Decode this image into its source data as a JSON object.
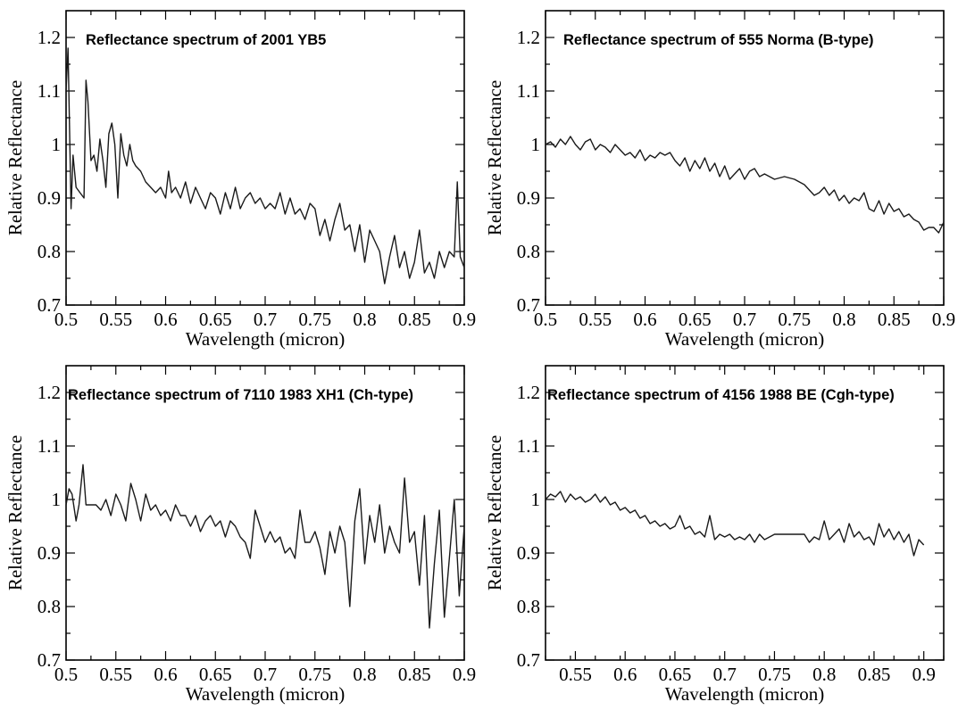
{
  "chart_data": [
    {
      "type": "line",
      "title": "Reflectance spectrum of 2001 YB5",
      "xlabel": "Wavelength (micron)",
      "ylabel": "Relative Reflectance",
      "xlim": [
        0.5,
        0.9
      ],
      "ylim": [
        0.7,
        1.25
      ],
      "xticks": [
        0.5,
        0.55,
        0.6,
        0.65,
        0.7,
        0.75,
        0.8,
        0.85,
        0.9
      ],
      "xtick_labels": [
        "0.5",
        "0.55",
        "0.6",
        "0.65",
        "0.7",
        "0.75",
        "0.8",
        "0.85",
        "0.9"
      ],
      "yticks": [
        0.7,
        0.8,
        0.9,
        1.0,
        1.1,
        1.2
      ],
      "ytick_labels": [
        "0.7",
        "0.8",
        "0.9",
        "1",
        "1.1",
        "1.2"
      ],
      "x": [
        0.5,
        0.502,
        0.505,
        0.507,
        0.51,
        0.514,
        0.518,
        0.52,
        0.522,
        0.525,
        0.528,
        0.531,
        0.534,
        0.537,
        0.54,
        0.543,
        0.546,
        0.549,
        0.552,
        0.555,
        0.558,
        0.561,
        0.564,
        0.567,
        0.57,
        0.575,
        0.58,
        0.585,
        0.59,
        0.595,
        0.6,
        0.603,
        0.606,
        0.61,
        0.615,
        0.62,
        0.625,
        0.63,
        0.635,
        0.64,
        0.645,
        0.65,
        0.655,
        0.66,
        0.665,
        0.67,
        0.675,
        0.68,
        0.685,
        0.69,
        0.695,
        0.7,
        0.705,
        0.71,
        0.715,
        0.72,
        0.725,
        0.73,
        0.735,
        0.74,
        0.745,
        0.75,
        0.755,
        0.76,
        0.765,
        0.77,
        0.775,
        0.78,
        0.785,
        0.79,
        0.795,
        0.8,
        0.805,
        0.81,
        0.815,
        0.82,
        0.825,
        0.83,
        0.835,
        0.84,
        0.845,
        0.85,
        0.855,
        0.86,
        0.865,
        0.87,
        0.875,
        0.88,
        0.885,
        0.89,
        0.893,
        0.896,
        0.9
      ],
      "y": [
        1.1,
        1.18,
        0.88,
        0.98,
        0.92,
        0.91,
        0.9,
        1.12,
        1.08,
        0.97,
        0.98,
        0.95,
        1.01,
        0.97,
        0.92,
        1.02,
        1.04,
        1.0,
        0.9,
        1.02,
        0.98,
        0.96,
        1.0,
        0.97,
        0.96,
        0.95,
        0.93,
        0.92,
        0.91,
        0.92,
        0.9,
        0.95,
        0.91,
        0.92,
        0.9,
        0.93,
        0.89,
        0.92,
        0.9,
        0.88,
        0.91,
        0.9,
        0.87,
        0.91,
        0.88,
        0.92,
        0.88,
        0.9,
        0.91,
        0.89,
        0.9,
        0.88,
        0.89,
        0.88,
        0.91,
        0.87,
        0.9,
        0.87,
        0.88,
        0.86,
        0.89,
        0.88,
        0.83,
        0.86,
        0.82,
        0.86,
        0.89,
        0.84,
        0.85,
        0.8,
        0.85,
        0.78,
        0.84,
        0.82,
        0.8,
        0.74,
        0.79,
        0.83,
        0.77,
        0.8,
        0.75,
        0.78,
        0.84,
        0.76,
        0.78,
        0.75,
        0.8,
        0.77,
        0.8,
        0.79,
        0.93,
        0.79,
        0.77
      ],
      "grid": false
    },
    {
      "type": "line",
      "title": "Reflectance spectrum of 555 Norma (B-type)",
      "xlabel": "Wavelength (micron)",
      "ylabel": "Relative Reflectance",
      "xlim": [
        0.5,
        0.9
      ],
      "ylim": [
        0.7,
        1.25
      ],
      "xticks": [
        0.5,
        0.55,
        0.6,
        0.65,
        0.7,
        0.75,
        0.8,
        0.85,
        0.9
      ],
      "xtick_labels": [
        "0.5",
        "0.55",
        "0.6",
        "0.65",
        "0.7",
        "0.75",
        "0.8",
        "0.85",
        "0.9"
      ],
      "yticks": [
        0.7,
        0.8,
        0.9,
        1.0,
        1.1,
        1.2
      ],
      "ytick_labels": [
        "0.7",
        "0.8",
        "0.9",
        "1",
        "1.1",
        "1.2"
      ],
      "x": [
        0.5,
        0.505,
        0.51,
        0.515,
        0.52,
        0.525,
        0.53,
        0.535,
        0.54,
        0.545,
        0.55,
        0.555,
        0.56,
        0.565,
        0.57,
        0.575,
        0.58,
        0.585,
        0.59,
        0.595,
        0.6,
        0.605,
        0.61,
        0.615,
        0.62,
        0.625,
        0.63,
        0.635,
        0.64,
        0.645,
        0.65,
        0.655,
        0.66,
        0.665,
        0.67,
        0.675,
        0.68,
        0.685,
        0.69,
        0.695,
        0.7,
        0.705,
        0.71,
        0.715,
        0.72,
        0.73,
        0.74,
        0.75,
        0.76,
        0.77,
        0.775,
        0.78,
        0.785,
        0.79,
        0.795,
        0.8,
        0.805,
        0.81,
        0.815,
        0.82,
        0.825,
        0.83,
        0.835,
        0.84,
        0.845,
        0.85,
        0.855,
        0.86,
        0.865,
        0.87,
        0.875,
        0.88,
        0.885,
        0.89,
        0.895,
        0.9
      ],
      "y": [
        1.0,
        1.005,
        0.995,
        1.01,
        1.0,
        1.015,
        1.0,
        0.99,
        1.005,
        1.01,
        0.99,
        1.0,
        0.995,
        0.985,
        1.0,
        0.99,
        0.98,
        0.985,
        0.975,
        0.99,
        0.97,
        0.98,
        0.975,
        0.985,
        0.98,
        0.985,
        0.97,
        0.96,
        0.975,
        0.95,
        0.97,
        0.955,
        0.975,
        0.95,
        0.965,
        0.94,
        0.96,
        0.935,
        0.945,
        0.955,
        0.935,
        0.95,
        0.955,
        0.94,
        0.945,
        0.935,
        0.94,
        0.935,
        0.925,
        0.905,
        0.91,
        0.92,
        0.905,
        0.915,
        0.895,
        0.905,
        0.89,
        0.9,
        0.895,
        0.91,
        0.88,
        0.875,
        0.895,
        0.87,
        0.89,
        0.875,
        0.88,
        0.865,
        0.87,
        0.86,
        0.855,
        0.84,
        0.845,
        0.845,
        0.835,
        0.855
      ],
      "grid": false
    },
    {
      "type": "line",
      "title": "Reflectance spectrum of 7110 1983 XH1 (Ch-type)",
      "xlabel": "Wavelength (micron)",
      "ylabel": "Relative Reflectance",
      "xlim": [
        0.5,
        0.9
      ],
      "ylim": [
        0.7,
        1.25
      ],
      "xticks": [
        0.5,
        0.55,
        0.6,
        0.65,
        0.7,
        0.75,
        0.8,
        0.85,
        0.9
      ],
      "xtick_labels": [
        "0.5",
        "0.55",
        "0.6",
        "0.65",
        "0.7",
        "0.75",
        "0.8",
        "0.85",
        "0.9"
      ],
      "yticks": [
        0.7,
        0.8,
        0.9,
        1.0,
        1.1,
        1.2
      ],
      "ytick_labels": [
        "0.7",
        "0.8",
        "0.9",
        "1",
        "1.1",
        "1.2"
      ],
      "x": [
        0.5,
        0.503,
        0.506,
        0.51,
        0.513,
        0.517,
        0.52,
        0.53,
        0.535,
        0.54,
        0.545,
        0.55,
        0.555,
        0.56,
        0.565,
        0.57,
        0.575,
        0.58,
        0.585,
        0.59,
        0.595,
        0.6,
        0.605,
        0.61,
        0.615,
        0.62,
        0.625,
        0.63,
        0.635,
        0.64,
        0.645,
        0.65,
        0.655,
        0.66,
        0.665,
        0.67,
        0.675,
        0.68,
        0.685,
        0.69,
        0.695,
        0.7,
        0.705,
        0.71,
        0.715,
        0.72,
        0.725,
        0.73,
        0.735,
        0.74,
        0.745,
        0.75,
        0.755,
        0.76,
        0.765,
        0.77,
        0.775,
        0.78,
        0.785,
        0.79,
        0.795,
        0.8,
        0.805,
        0.81,
        0.815,
        0.82,
        0.825,
        0.83,
        0.835,
        0.84,
        0.845,
        0.85,
        0.855,
        0.86,
        0.865,
        0.87,
        0.875,
        0.88,
        0.885,
        0.89,
        0.895,
        0.9
      ],
      "y": [
        0.99,
        1.02,
        1.01,
        0.96,
        0.99,
        1.065,
        0.99,
        0.99,
        0.98,
        1.0,
        0.97,
        1.01,
        0.99,
        0.96,
        1.03,
        1.0,
        0.96,
        1.01,
        0.98,
        0.99,
        0.97,
        0.98,
        0.96,
        0.99,
        0.97,
        0.97,
        0.95,
        0.97,
        0.94,
        0.96,
        0.97,
        0.95,
        0.96,
        0.93,
        0.96,
        0.95,
        0.93,
        0.92,
        0.89,
        0.98,
        0.95,
        0.92,
        0.94,
        0.92,
        0.93,
        0.9,
        0.91,
        0.89,
        0.98,
        0.92,
        0.92,
        0.94,
        0.91,
        0.86,
        0.94,
        0.9,
        0.95,
        0.92,
        0.8,
        0.96,
        1.02,
        0.88,
        0.97,
        0.92,
        0.99,
        0.9,
        0.95,
        0.92,
        0.9,
        1.04,
        0.92,
        0.94,
        0.84,
        0.97,
        0.76,
        0.88,
        0.98,
        0.78,
        0.89,
        1.0,
        0.82,
        0.95
      ],
      "grid": false
    },
    {
      "type": "line",
      "title": "Reflectance spectrum of 4156 1988 BE (Cgh-type)",
      "xlabel": "Wavelength (micron)",
      "ylabel": "Relative Reflectance",
      "xlim": [
        0.52,
        0.92
      ],
      "ylim": [
        0.7,
        1.25
      ],
      "xticks": [
        0.55,
        0.6,
        0.65,
        0.7,
        0.75,
        0.8,
        0.85,
        0.9
      ],
      "xtick_labels": [
        "0.55",
        "0.6",
        "0.65",
        "0.7",
        "0.75",
        "0.8",
        "0.85",
        "0.9"
      ],
      "yticks": [
        0.7,
        0.8,
        0.9,
        1.0,
        1.1,
        1.2
      ],
      "ytick_labels": [
        "0.7",
        "0.8",
        "0.9",
        "1",
        "1.1",
        "1.2"
      ],
      "x": [
        0.52,
        0.525,
        0.53,
        0.535,
        0.54,
        0.545,
        0.55,
        0.555,
        0.56,
        0.565,
        0.57,
        0.575,
        0.58,
        0.585,
        0.59,
        0.595,
        0.6,
        0.605,
        0.61,
        0.615,
        0.62,
        0.625,
        0.63,
        0.635,
        0.64,
        0.645,
        0.65,
        0.655,
        0.66,
        0.665,
        0.67,
        0.675,
        0.68,
        0.685,
        0.69,
        0.695,
        0.7,
        0.705,
        0.71,
        0.715,
        0.72,
        0.725,
        0.73,
        0.735,
        0.74,
        0.745,
        0.75,
        0.755,
        0.76,
        0.765,
        0.78,
        0.785,
        0.79,
        0.795,
        0.8,
        0.805,
        0.81,
        0.815,
        0.82,
        0.825,
        0.83,
        0.835,
        0.84,
        0.845,
        0.85,
        0.855,
        0.86,
        0.865,
        0.87,
        0.875,
        0.88,
        0.885,
        0.89,
        0.895,
        0.9
      ],
      "y": [
        1.0,
        1.01,
        1.005,
        1.015,
        0.995,
        1.01,
        1.0,
        1.005,
        0.995,
        1.0,
        1.01,
        0.995,
        1.005,
        0.99,
        0.995,
        0.98,
        0.985,
        0.975,
        0.98,
        0.965,
        0.97,
        0.955,
        0.96,
        0.95,
        0.955,
        0.945,
        0.95,
        0.97,
        0.945,
        0.95,
        0.935,
        0.94,
        0.93,
        0.97,
        0.925,
        0.935,
        0.93,
        0.935,
        0.925,
        0.93,
        0.925,
        0.935,
        0.92,
        0.935,
        0.925,
        0.93,
        0.935,
        0.935,
        0.935,
        0.935,
        0.935,
        0.92,
        0.93,
        0.925,
        0.96,
        0.925,
        0.935,
        0.945,
        0.92,
        0.955,
        0.93,
        0.94,
        0.925,
        0.93,
        0.915,
        0.955,
        0.93,
        0.945,
        0.925,
        0.94,
        0.92,
        0.935,
        0.895,
        0.925,
        0.915
      ],
      "grid": false
    }
  ]
}
